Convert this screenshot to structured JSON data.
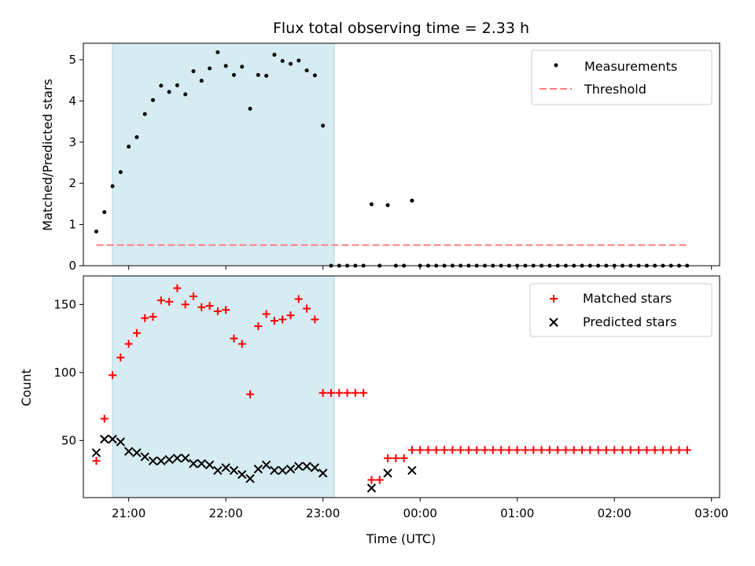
{
  "title": "Flux total observing time = 2.33 h",
  "colors": {
    "shade": "#add8e6",
    "matched": "#ff0000",
    "predicted": "#000000",
    "threshold": "#ff7f7f",
    "measurement": "#000000"
  },
  "chart_data": [
    {
      "type": "scatter",
      "ylabel": "Matched/Predicted stars",
      "xlabel": "",
      "ylim": [
        0,
        5.4
      ],
      "yticks": [
        0,
        1,
        2,
        3,
        4,
        5
      ],
      "shaded_interval": [
        "20:40",
        "23:00"
      ],
      "legend": {
        "placement": "top-right",
        "entries": [
          "Measurements",
          "Threshold"
        ]
      },
      "threshold": {
        "name": "Threshold",
        "y": 0.5,
        "x_start": "20:40",
        "x_end": "02:45"
      },
      "measurements": {
        "name": "Measurements",
        "x": [
          "20:40",
          "20:45",
          "20:50",
          "20:55",
          "21:00",
          "21:05",
          "21:10",
          "21:15",
          "21:20",
          "21:25",
          "21:30",
          "21:35",
          "21:40",
          "21:45",
          "21:50",
          "21:55",
          "22:00",
          "22:05",
          "22:10",
          "22:15",
          "22:20",
          "22:25",
          "22:30",
          "22:35",
          "22:40",
          "22:45",
          "22:50",
          "22:55",
          "23:00",
          "23:05",
          "23:10",
          "23:15",
          "23:20",
          "23:25",
          "23:30",
          "23:35",
          "23:40",
          "23:45",
          "23:50",
          "23:55",
          "00:00",
          "00:05",
          "00:10",
          "00:15",
          "00:20",
          "00:25",
          "00:30",
          "00:35",
          "00:40",
          "00:45",
          "00:50",
          "00:55",
          "01:00",
          "01:05",
          "01:10",
          "01:15",
          "01:20",
          "01:25",
          "01:30",
          "01:35",
          "01:40",
          "01:45",
          "01:50",
          "01:55",
          "02:00",
          "02:05",
          "02:10",
          "02:15",
          "02:20",
          "02:25",
          "02:30",
          "02:35",
          "02:40",
          "02:45"
        ],
        "y": [
          0.83,
          1.3,
          1.93,
          2.27,
          2.89,
          3.12,
          3.68,
          4.02,
          4.37,
          4.22,
          4.38,
          4.16,
          4.72,
          4.49,
          4.79,
          5.18,
          4.85,
          4.63,
          4.83,
          3.81,
          4.63,
          4.61,
          5.12,
          4.97,
          4.9,
          4.98,
          4.74,
          4.62,
          3.4,
          0.0,
          0.0,
          0.0,
          0.0,
          0.0,
          1.49,
          0.0,
          1.47,
          0.0,
          0.0,
          1.58,
          0.0,
          0.0,
          0.0,
          0.0,
          0.0,
          0.0,
          0.0,
          0.0,
          0.0,
          0.0,
          0.0,
          0.0,
          0.0,
          0.0,
          0.0,
          0.0,
          0.0,
          0.0,
          0.0,
          0.0,
          0.0,
          0.0,
          0.0,
          0.0,
          0.0,
          0.0,
          0.0,
          0.0,
          0.0,
          0.0,
          0.0,
          0.0,
          0.0,
          0.0
        ]
      }
    },
    {
      "type": "scatter",
      "ylabel": "Count",
      "xlabel": "Time (UTC)",
      "ylim": [
        8,
        171
      ],
      "yticks": [
        50,
        100,
        150
      ],
      "xticks": [
        "21:00",
        "22:00",
        "23:00",
        "00:00",
        "01:00",
        "02:00",
        "03:00"
      ],
      "shaded_interval": [
        "20:40",
        "23:00"
      ],
      "legend": {
        "placement": "top-right",
        "entries": [
          "Matched stars",
          "Predicted stars"
        ]
      },
      "matched": {
        "name": "Matched stars",
        "x": [
          "20:40",
          "20:45",
          "20:50",
          "20:55",
          "21:00",
          "21:05",
          "21:10",
          "21:15",
          "21:20",
          "21:25",
          "21:30",
          "21:35",
          "21:40",
          "21:45",
          "21:50",
          "21:55",
          "22:00",
          "22:05",
          "22:10",
          "22:15",
          "22:20",
          "22:25",
          "22:30",
          "22:35",
          "22:40",
          "22:45",
          "22:50",
          "22:55",
          "23:00",
          "23:05",
          "23:10",
          "23:15",
          "23:20",
          "23:25",
          "23:30",
          "23:35",
          "23:40",
          "23:45",
          "23:50",
          "23:55",
          "00:00",
          "00:05",
          "00:10",
          "00:15",
          "00:20",
          "00:25",
          "00:30",
          "00:35",
          "00:40",
          "00:45",
          "00:50",
          "00:55",
          "01:00",
          "01:05",
          "01:10",
          "01:15",
          "01:20",
          "01:25",
          "01:30",
          "01:35",
          "01:40",
          "01:45",
          "01:50",
          "01:55",
          "02:00",
          "02:05",
          "02:10",
          "02:15",
          "02:20",
          "02:25",
          "02:30",
          "02:35",
          "02:40",
          "02:45"
        ],
        "y": [
          35,
          66,
          98,
          111,
          121,
          129,
          140,
          141,
          153,
          152,
          162,
          150,
          156,
          148,
          149,
          145,
          146,
          125,
          121,
          84,
          134,
          143,
          138,
          139,
          142,
          154,
          147,
          139,
          85,
          85,
          85,
          85,
          85,
          85,
          21,
          21,
          37,
          37,
          37,
          43,
          43,
          43,
          43,
          43,
          43,
          43,
          43,
          43,
          43,
          43,
          43,
          43,
          43,
          43,
          43,
          43,
          43,
          43,
          43,
          43,
          43,
          43,
          43,
          43,
          43,
          43,
          43,
          43,
          43,
          43,
          43,
          43,
          43,
          43
        ]
      },
      "predicted": {
        "name": "Predicted stars",
        "x": [
          "20:40",
          "20:45",
          "20:50",
          "20:55",
          "21:00",
          "21:05",
          "21:10",
          "21:15",
          "21:20",
          "21:25",
          "21:30",
          "21:35",
          "21:40",
          "21:45",
          "21:50",
          "21:55",
          "22:00",
          "22:05",
          "22:10",
          "22:15",
          "22:20",
          "22:25",
          "22:30",
          "22:35",
          "22:40",
          "22:45",
          "22:50",
          "22:55",
          "23:00",
          "23:30",
          "23:40",
          "23:55"
        ],
        "y": [
          41,
          51,
          51,
          49,
          42,
          41,
          38,
          35,
          35,
          36,
          37,
          37,
          33,
          33,
          32,
          28,
          30,
          28,
          25,
          22,
          29,
          32,
          28,
          28,
          29,
          31,
          31,
          30,
          26,
          15,
          26,
          28
        ]
      }
    }
  ]
}
